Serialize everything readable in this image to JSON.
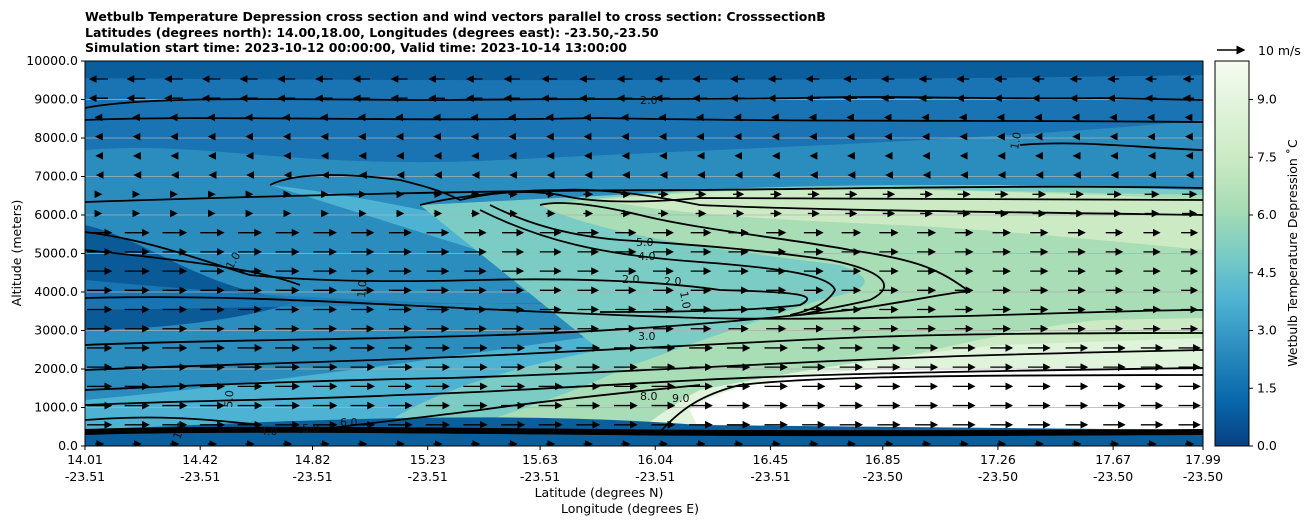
{
  "title_lines": [
    "Wetbulb Temperature Depression cross section and wind vectors parallel to cross section: CrosssectionB",
    "Latitudes (degrees north): 14.00,18.00, Longitudes (degrees east): -23.50,-23.50",
    "Simulation start time: 2023-10-12 00:00:00, Valid time: 2023-10-14 13:00:00"
  ],
  "chart_data": {
    "type": "heatmap",
    "title": "Wetbulb Temperature Depression cross section and wind vectors parallel to cross section: CrosssectionB",
    "ylabel": "Altitude (meters)",
    "xlabel_lines": [
      "Latitude (degrees N)",
      "Longitude (degrees E)"
    ],
    "ylim": [
      0,
      10000
    ],
    "yticks": [
      "0.0",
      "1000.0",
      "2000.0",
      "3000.0",
      "4000.0",
      "5000.0",
      "6000.0",
      "7000.0",
      "8000.0",
      "9000.0",
      "10000.0"
    ],
    "xticks": [
      {
        "lat": "14.01",
        "lon": "-23.51"
      },
      {
        "lat": "14.42",
        "lon": "-23.51"
      },
      {
        "lat": "14.82",
        "lon": "-23.51"
      },
      {
        "lat": "15.23",
        "lon": "-23.51"
      },
      {
        "lat": "15.63",
        "lon": "-23.51"
      },
      {
        "lat": "16.04",
        "lon": "-23.51"
      },
      {
        "lat": "16.45",
        "lon": "-23.51"
      },
      {
        "lat": "16.85",
        "lon": "-23.50"
      },
      {
        "lat": "17.26",
        "lon": "-23.50"
      },
      {
        "lat": "17.67",
        "lon": "-23.50"
      },
      {
        "lat": "17.99",
        "lon": "-23.50"
      }
    ],
    "colorbar": {
      "label": "Wetbulb Temperature Depression ˚C",
      "ticks": [
        "0.0",
        "1.5",
        "3.0",
        "4.5",
        "6.0",
        "7.5",
        "9.0"
      ],
      "range": [
        0,
        10
      ],
      "colormap": [
        "#084081",
        "#0868ac",
        "#2b8cbe",
        "#4eb3d3",
        "#7bccc4",
        "#a8ddb5",
        "#ccebc5",
        "#e0f3db",
        "#f7fcf0"
      ]
    },
    "quiver_key": "10 m/s",
    "contour_labels": [
      "1.0",
      "2.0",
      "3.0",
      "4.0",
      "5.0",
      "6.0",
      "8.0",
      "9.0"
    ],
    "grid": "horizontal"
  }
}
